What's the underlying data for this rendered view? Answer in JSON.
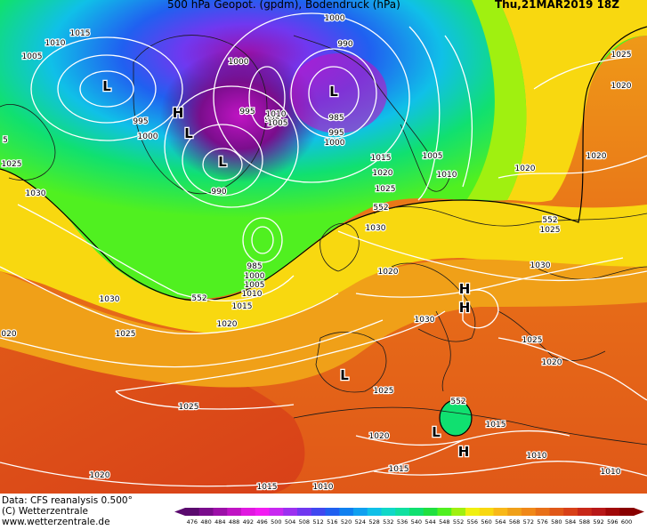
{
  "header": {
    "title": "500 hPa Geopot. (gpdm), Bodendruck (hPa)",
    "valid_time": "Thu,21MAR2019 18Z"
  },
  "footer": {
    "data_source": "Data: CFS reanalysis 0.500°",
    "copyright": "(C) Wetterzentrale",
    "website": "www.wetterzentrale.de"
  },
  "legend": {
    "units": "gpdm",
    "levels": [
      "476",
      "480",
      "484",
      "488",
      "492",
      "496",
      "500",
      "504",
      "508",
      "512",
      "516",
      "520",
      "524",
      "528",
      "532",
      "536",
      "540",
      "544",
      "548",
      "552",
      "556",
      "560",
      "564",
      "568",
      "572",
      "576",
      "580",
      "584",
      "588",
      "592",
      "596",
      "600"
    ],
    "colors": [
      "#5a0a6e",
      "#7a0d8c",
      "#9c10a8",
      "#c014c4",
      "#e018e0",
      "#f21cf2",
      "#c828f0",
      "#9c30f0",
      "#7038f0",
      "#4048f0",
      "#2060f0",
      "#1080f0",
      "#10a0f0",
      "#10c0e8",
      "#10d8c8",
      "#10e0a0",
      "#10e070",
      "#20e040",
      "#50f020",
      "#a0f010",
      "#f0f010",
      "#f8d810",
      "#f8b818",
      "#f0a018",
      "#f08818",
      "#e87018",
      "#e05818",
      "#d84018",
      "#c82818",
      "#b81818",
      "#a00808",
      "#880000"
    ]
  },
  "map": {
    "contour_labels": {
      "pressure_hpa": [
        "1015",
        "1010",
        "1005",
        "1000",
        "995",
        "990",
        "985",
        "1020",
        "1025",
        "1030"
      ],
      "geopotential_gpdm": [
        "552"
      ]
    },
    "pressure_centers": [
      {
        "type": "L",
        "region": "Baffin Bay / Davis Strait"
      },
      {
        "type": "H",
        "region": "Greenland"
      },
      {
        "type": "L",
        "region": "Greenland"
      },
      {
        "type": "L",
        "region": "Norwegian Sea"
      },
      {
        "type": "L",
        "region": "Greenland Sea"
      },
      {
        "type": "H",
        "region": "Central Europe"
      },
      {
        "type": "H",
        "region": "Balkans"
      },
      {
        "type": "L",
        "region": "Iberian Peninsula"
      },
      {
        "type": "L",
        "region": "Algeria"
      },
      {
        "type": "H",
        "region": "Tunisia"
      }
    ],
    "labels": [
      {
        "text": "1015"
      },
      {
        "text": "1010"
      },
      {
        "text": "1005"
      },
      {
        "text": "1000"
      },
      {
        "text": "995"
      },
      {
        "text": "1000"
      },
      {
        "text": "995"
      },
      {
        "text": "990"
      },
      {
        "text": "995"
      },
      {
        "text": "1010"
      },
      {
        "text": "1005"
      },
      {
        "text": "990"
      },
      {
        "text": "985"
      },
      {
        "text": "995"
      },
      {
        "text": "1000"
      },
      {
        "text": "1015"
      },
      {
        "text": "1005"
      },
      {
        "text": "1010"
      },
      {
        "text": "1020"
      },
      {
        "text": "1025"
      },
      {
        "text": "1020"
      },
      {
        "text": "1020"
      },
      {
        "text": "1025"
      },
      {
        "text": "1020"
      },
      {
        "text": "1025"
      },
      {
        "text": "1030"
      },
      {
        "text": "552"
      },
      {
        "text": "985"
      },
      {
        "text": "1000"
      },
      {
        "text": "1005"
      },
      {
        "text": "1010"
      },
      {
        "text": "1015"
      },
      {
        "text": "1020"
      },
      {
        "text": "1025"
      },
      {
        "text": "1030"
      },
      {
        "text": "1020"
      },
      {
        "text": "552"
      },
      {
        "text": "1030"
      },
      {
        "text": "1025"
      },
      {
        "text": "552"
      },
      {
        "text": "1030"
      },
      {
        "text": "1030"
      },
      {
        "text": "1025"
      },
      {
        "text": "1020"
      },
      {
        "text": "1025"
      },
      {
        "text": "1020"
      },
      {
        "text": "552"
      },
      {
        "text": "1015"
      },
      {
        "text": "1010"
      },
      {
        "text": "1015"
      },
      {
        "text": "1010"
      },
      {
        "text": "1025"
      },
      {
        "text": "1020"
      },
      {
        "text": "1015"
      },
      {
        "text": "1010"
      },
      {
        "text": "1000"
      },
      {
        "text": "5"
      },
      {
        "text": "020"
      }
    ]
  }
}
